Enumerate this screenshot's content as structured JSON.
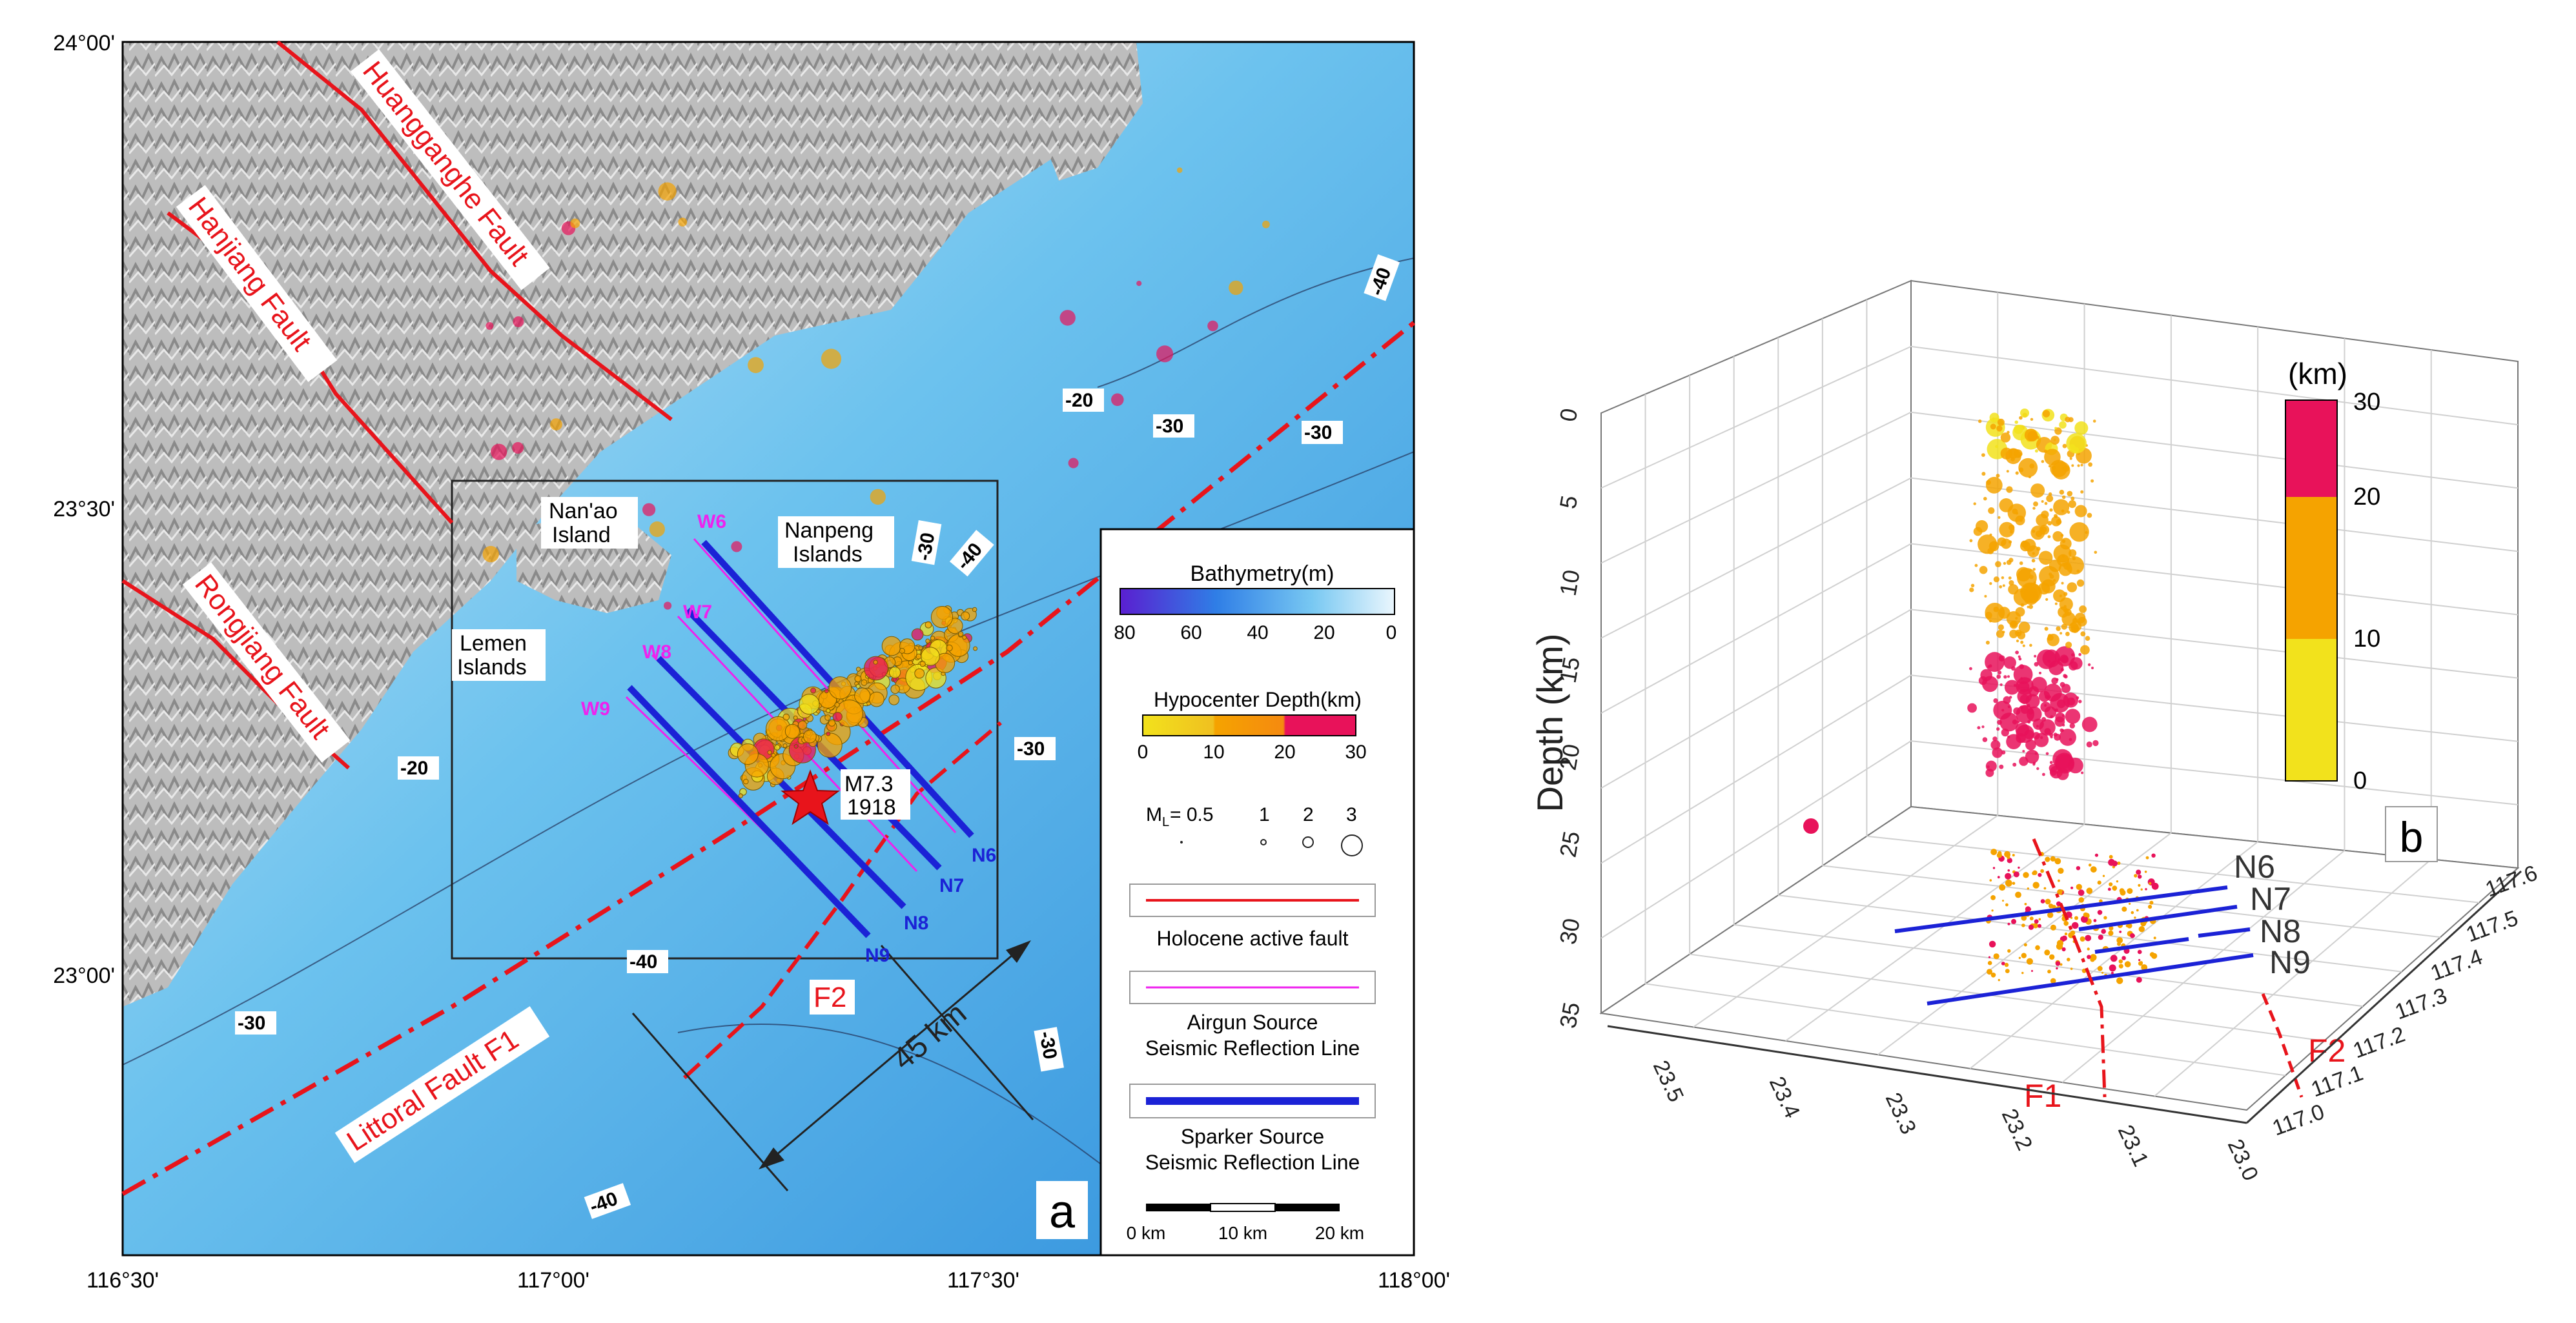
{
  "map": {
    "lat_ticks": [
      "24°00'",
      "23°30'",
      "23°00'"
    ],
    "lon_ticks": [
      "116°30'",
      "117°00'",
      "117°30'",
      "118°00'"
    ],
    "fault_labels": {
      "huangganghe": "Huangganghe Fault",
      "hanjiang": "Hanjiang Fault",
      "rongjiang": "Rongjiang Fault",
      "littoral": "Littoral Fault F1",
      "f2": "F2"
    },
    "place_labels": {
      "nanao_line1": "Nan'ao",
      "nanao_line2": "Island",
      "nanpeng_line1": "Nanpeng",
      "nanpeng_line2": "Islands",
      "lemen_line1": "Lemen",
      "lemen_line2": "Islands"
    },
    "quake_label_line1": "M7.3",
    "quake_label_line2": "1918",
    "contour_labels": [
      "-20",
      "-30",
      "-30",
      "-40",
      "-30",
      "-40",
      "-30",
      "-20",
      "-30",
      "-40",
      "-30",
      "-40"
    ],
    "line_labels": {
      "w6": "W6",
      "w7": "W7",
      "w8": "W8",
      "w9": "W9",
      "n6": "N6",
      "n7": "N7",
      "n8": "N8",
      "n9": "N9"
    },
    "distance_label": "45 km",
    "panel_letter": "a",
    "legend": {
      "bathy_title": "Bathymetry(m)",
      "bathy_ticks": [
        "80",
        "60",
        "40",
        "20",
        "0"
      ],
      "depth_title": "Hypocenter  Depth(km)",
      "depth_ticks": [
        "0",
        "10",
        "20",
        "30"
      ],
      "ml_label": "M",
      "ml_sub": "L",
      "ml_values": [
        "= 0.5",
        "1",
        "2",
        "3"
      ],
      "holocene": "Holocene active fault",
      "airgun_line1": "Airgun Source",
      "airgun_line2": "Seismic Reflection Line",
      "sparker_line1": "Sparker Source",
      "sparker_line2": "Seismic Reflection Line",
      "scale_ticks": [
        "0 km",
        "10 km",
        "20 km"
      ]
    }
  },
  "plot3d": {
    "y_label": "Depth (km)",
    "depth_ticks": [
      "0",
      "5",
      "10",
      "15",
      "20",
      "25",
      "30",
      "35"
    ],
    "lat_ticks": [
      "23.5",
      "23.4",
      "23.3",
      "23.2",
      "23.1",
      "23.0"
    ],
    "lon_ticks": [
      "117.0",
      "117.1",
      "117.2",
      "117.3",
      "117.4",
      "117.5",
      "117.6"
    ],
    "line_labels": {
      "n6": "N6",
      "n7": "N7",
      "n8": "N8",
      "n9": "N9"
    },
    "fault_labels": {
      "f1": "F1",
      "f2": "F2"
    },
    "colorbar_title": "(km)",
    "colorbar_ticks": [
      "30",
      "20",
      "10",
      "0"
    ],
    "panel_letter": "b"
  },
  "colors": {
    "fault": "#e8141b",
    "airgun": "#ee22ee",
    "sparker": "#1b22d6",
    "shallow": "#f2e21c",
    "mid": "#f5a300",
    "deep": "#e8125a"
  }
}
